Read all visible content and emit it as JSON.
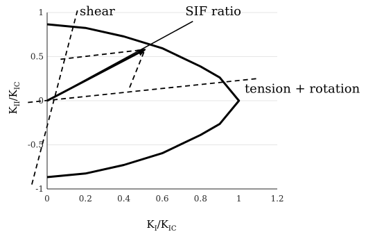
{
  "chart_data": {
    "type": "line",
    "xlabel": {
      "main": "K",
      "sub1": "I",
      "mid": "/K",
      "sub2": "IC"
    },
    "ylabel": {
      "main": "K",
      "sub1": "II",
      "mid": "/K",
      "sub2": "IC"
    },
    "xlim": [
      0,
      1.2
    ],
    "ylim": [
      -1,
      1
    ],
    "xticks": [
      "0",
      "0.2",
      "0.4",
      "0.6",
      "0.8",
      "1",
      "1.2"
    ],
    "yticks": [
      "1",
      "0.5",
      "0",
      "-0.5",
      "-1"
    ],
    "grid": "horizontal",
    "series": [
      {
        "style": "solid-thick",
        "x": [
          0.0,
          0.2,
          0.4,
          0.6,
          0.8,
          0.9,
          1.0,
          0.9,
          0.8,
          0.6,
          0.4,
          0.2,
          0.0
        ],
        "y": [
          0.866,
          0.825,
          0.728,
          0.595,
          0.388,
          0.263,
          0.0,
          -0.263,
          -0.388,
          -0.595,
          -0.728,
          -0.825,
          -0.866
        ]
      },
      {
        "style": "solid-thin",
        "x": [
          0.0,
          0.76
        ],
        "y": [
          0.0,
          0.9
        ]
      },
      {
        "style": "dashed",
        "x": [
          -0.08,
          0.16
        ],
        "y": [
          -0.95,
          1.04
        ]
      },
      {
        "style": "dashed",
        "x": [
          -0.1,
          1.09
        ],
        "y": [
          -0.02,
          0.25
        ]
      },
      {
        "style": "dashed",
        "x": [
          0.07,
          0.51
        ],
        "y": [
          0.47,
          0.58
        ]
      },
      {
        "style": "dashed",
        "x": [
          0.43,
          0.51
        ],
        "y": [
          0.15,
          0.58
        ]
      },
      {
        "style": "arrow",
        "x": [
          0.0,
          0.51
        ],
        "y": [
          0.0,
          0.58
        ]
      }
    ],
    "annotations": [
      {
        "text": "shear",
        "x": 0.17,
        "y": 0.97
      },
      {
        "text": "SIF ratio",
        "x": 0.72,
        "y": 0.97
      },
      {
        "text": "tension + rotation",
        "x": 1.03,
        "y": 0.09
      }
    ]
  }
}
